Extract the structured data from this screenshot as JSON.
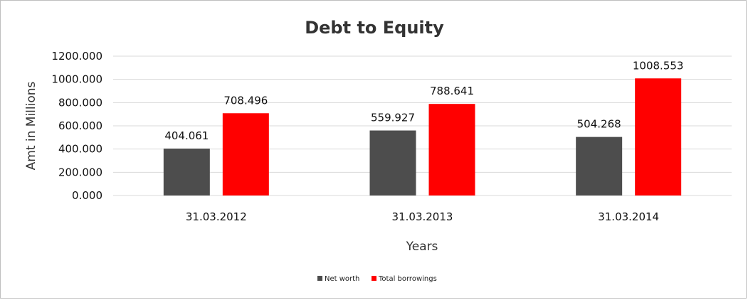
{
  "chart_data": {
    "type": "bar",
    "title": "Debt to Equity",
    "xlabel": "Years",
    "ylabel": "Amt in Millions",
    "categories": [
      "31.03.2012",
      "31.03.2013",
      "31.03.2014"
    ],
    "series": [
      {
        "name": "Net worth",
        "color": "#4d4d4d",
        "values": [
          404.061,
          559.927,
          504.268
        ],
        "labels": [
          "404.061",
          "559.927",
          "504.268"
        ]
      },
      {
        "name": "Total borrowings",
        "color": "#ff0000",
        "values": [
          708.496,
          788.641,
          1008.553
        ],
        "labels": [
          "708.496",
          "788.641",
          "1008.553"
        ]
      }
    ],
    "ylim": [
      0,
      1200
    ],
    "yticks": [
      "0.000",
      "200.000",
      "400.000",
      "600.000",
      "800.000",
      "1000.000",
      "1200.000"
    ],
    "grid": true,
    "legend": "bottom-center"
  }
}
